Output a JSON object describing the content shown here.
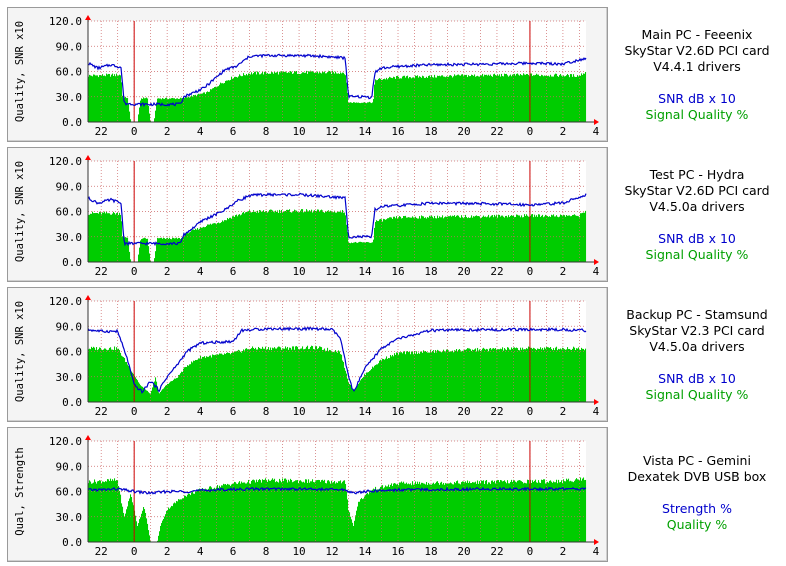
{
  "colors": {
    "snr_line": "#0000cc",
    "quality_fill": "#00cc00",
    "midnight": "#cc0000",
    "grid": "#cc6666",
    "axis_arrow": "#ff0000"
  },
  "chart_data": [
    {
      "type": "area",
      "ylabel": "Quality, SNR x10",
      "ylim": [
        0,
        120
      ],
      "yticks": [
        "120.0",
        "90.0",
        "60.0",
        "30.0",
        "0.0"
      ],
      "xticks": [
        "22",
        "0",
        "2",
        "4",
        "6",
        "8",
        "10",
        "12",
        "14",
        "16",
        "18",
        "20",
        "22",
        "0",
        "2",
        "4",
        "6",
        "8",
        "10",
        "12",
        "14"
      ],
      "hours_range": [
        21.2,
        51.4
      ],
      "midnights": [
        24,
        48
      ],
      "series": [
        {
          "name": "SNR dB x 10",
          "kind": "line",
          "points": [
            [
              21.2,
              70
            ],
            [
              21.8,
              64
            ],
            [
              22.6,
              68
            ],
            [
              23.2,
              65
            ],
            [
              23.4,
              22
            ],
            [
              24.3,
              21
            ],
            [
              26,
              21
            ],
            [
              26.8,
              21
            ],
            [
              27.0,
              30
            ],
            [
              28.2,
              40
            ],
            [
              28.8,
              50
            ],
            [
              29.5,
              62
            ],
            [
              30.2,
              66
            ],
            [
              31,
              78
            ],
            [
              32,
              79
            ],
            [
              34,
              79
            ],
            [
              35.5,
              78
            ],
            [
              36.8,
              76
            ],
            [
              37,
              30
            ],
            [
              38,
              30
            ],
            [
              38.4,
              29
            ],
            [
              38.6,
              59
            ],
            [
              39,
              64
            ],
            [
              40,
              66
            ],
            [
              42,
              68
            ],
            [
              46,
              69
            ],
            [
              48,
              70
            ],
            [
              50,
              69
            ],
            [
              51.4,
              76
            ]
          ]
        },
        {
          "name": "Signal Quality %",
          "kind": "area",
          "points": [
            [
              21.2,
              57
            ],
            [
              23.2,
              58
            ],
            [
              23.3,
              30
            ],
            [
              23.6,
              30
            ],
            [
              23.8,
              0
            ],
            [
              24.2,
              0
            ],
            [
              24.4,
              29
            ],
            [
              24.8,
              30
            ],
            [
              25.0,
              0
            ],
            [
              25.2,
              0
            ],
            [
              25.4,
              29
            ],
            [
              26.9,
              29
            ],
            [
              27.1,
              30
            ],
            [
              28.4,
              36
            ],
            [
              29.3,
              48
            ],
            [
              30,
              55
            ],
            [
              31,
              60
            ],
            [
              34,
              61
            ],
            [
              36.8,
              61
            ],
            [
              37.0,
              24
            ],
            [
              38.5,
              24
            ],
            [
              38.6,
              52
            ],
            [
              40,
              55
            ],
            [
              44,
              57
            ],
            [
              48,
              58
            ],
            [
              51,
              57
            ],
            [
              51.4,
              62
            ]
          ]
        }
      ],
      "legend": {
        "lines": [
          "Main PC - Feeenix",
          "SkyStar V2.6D PCI card",
          "V4.4.1 drivers"
        ],
        "blue": "SNR dB x 10",
        "green": "Signal Quality %"
      }
    },
    {
      "type": "area",
      "ylabel": "Quality, SNR x10",
      "ylim": [
        0,
        120
      ],
      "yticks": [
        "120.0",
        "90.0",
        "60.0",
        "30.0",
        "0.0"
      ],
      "xticks": [
        "22",
        "0",
        "2",
        "4",
        "6",
        "8",
        "10",
        "12",
        "14",
        "16",
        "18",
        "20",
        "22",
        "0",
        "2",
        "4",
        "6",
        "8",
        "10",
        "12",
        "14"
      ],
      "hours_range": [
        21.2,
        51.4
      ],
      "midnights": [
        24,
        48
      ],
      "series": [
        {
          "name": "SNR dB x 10",
          "kind": "line",
          "points": [
            [
              21.2,
              76
            ],
            [
              21.8,
              70
            ],
            [
              22.6,
              74
            ],
            [
              23.2,
              70
            ],
            [
              23.4,
              22
            ],
            [
              24.3,
              22
            ],
            [
              26,
              22
            ],
            [
              26.8,
              22
            ],
            [
              27.0,
              32
            ],
            [
              28.2,
              50
            ],
            [
              28.8,
              55
            ],
            [
              29.5,
              62
            ],
            [
              30.2,
              72
            ],
            [
              31,
              79
            ],
            [
              32,
              80
            ],
            [
              34,
              80
            ],
            [
              35.5,
              78
            ],
            [
              36.8,
              76
            ],
            [
              37,
              30
            ],
            [
              38,
              30
            ],
            [
              38.4,
              29
            ],
            [
              38.6,
              62
            ],
            [
              39,
              66
            ],
            [
              40,
              67
            ],
            [
              42,
              70
            ],
            [
              46,
              69
            ],
            [
              48,
              68
            ],
            [
              50,
              70
            ],
            [
              51.4,
              80
            ]
          ]
        },
        {
          "name": "Signal Quality %",
          "kind": "area",
          "points": [
            [
              21.2,
              60
            ],
            [
              23.2,
              60
            ],
            [
              23.3,
              30
            ],
            [
              23.6,
              30
            ],
            [
              23.8,
              0
            ],
            [
              24.2,
              0
            ],
            [
              24.4,
              29
            ],
            [
              24.8,
              29
            ],
            [
              25.0,
              0
            ],
            [
              25.2,
              0
            ],
            [
              25.4,
              29
            ],
            [
              26.9,
              29
            ],
            [
              27.1,
              35
            ],
            [
              28.4,
              45
            ],
            [
              29.3,
              50
            ],
            [
              30,
              56
            ],
            [
              31,
              62
            ],
            [
              34,
              63
            ],
            [
              36.8,
              62
            ],
            [
              37.0,
              24
            ],
            [
              38.5,
              24
            ],
            [
              38.6,
              50
            ],
            [
              40,
              55
            ],
            [
              44,
              56
            ],
            [
              48,
              57
            ],
            [
              51,
              57
            ],
            [
              51.4,
              64
            ]
          ]
        }
      ],
      "legend": {
        "lines": [
          "Test PC - Hydra",
          "SkyStar V2.6D PCI card",
          "V4.5.0a drivers"
        ],
        "blue": "SNR dB x 10",
        "green": "Signal Quality %"
      }
    },
    {
      "type": "area",
      "ylabel": "Quality, SNR x10",
      "ylim": [
        0,
        120
      ],
      "yticks": [
        "120.0",
        "90.0",
        "60.0",
        "30.0",
        "0.0"
      ],
      "xticks": [
        "22",
        "0",
        "2",
        "4",
        "6",
        "8",
        "10",
        "12",
        "14",
        "16",
        "18",
        "20",
        "22",
        "0",
        "2",
        "4",
        "6",
        "8",
        "10",
        "12",
        "14"
      ],
      "hours_range": [
        21.2,
        51.4
      ],
      "midnights": [
        24,
        48
      ],
      "series": [
        {
          "name": "SNR dB x 10",
          "kind": "line",
          "points": [
            [
              21.2,
              86
            ],
            [
              22,
              84
            ],
            [
              23,
              84
            ],
            [
              23.6,
              50
            ],
            [
              24,
              20
            ],
            [
              24.5,
              12
            ],
            [
              25,
              25
            ],
            [
              25.5,
              14
            ],
            [
              26,
              30
            ],
            [
              26.6,
              44
            ],
            [
              27.2,
              60
            ],
            [
              28,
              70
            ],
            [
              29,
              71
            ],
            [
              30,
              72
            ],
            [
              30.5,
              85
            ],
            [
              32,
              87
            ],
            [
              35,
              87
            ],
            [
              36,
              86
            ],
            [
              36.5,
              76
            ],
            [
              37,
              30
            ],
            [
              37.3,
              12
            ],
            [
              38,
              40
            ],
            [
              39,
              64
            ],
            [
              40,
              75
            ],
            [
              42,
              85
            ],
            [
              46,
              86
            ],
            [
              50,
              86
            ],
            [
              51.4,
              85
            ]
          ]
        },
        {
          "name": "Signal Quality %",
          "kind": "area",
          "points": [
            [
              21.2,
              66
            ],
            [
              23,
              66
            ],
            [
              23.8,
              40
            ],
            [
              24.4,
              20
            ],
            [
              25,
              10
            ],
            [
              25.3,
              30
            ],
            [
              25.5,
              10
            ],
            [
              26,
              22
            ],
            [
              26.6,
              30
            ],
            [
              27.2,
              45
            ],
            [
              28,
              55
            ],
            [
              30,
              60
            ],
            [
              31,
              66
            ],
            [
              35,
              67
            ],
            [
              36.5,
              62
            ],
            [
              37,
              25
            ],
            [
              37.3,
              14
            ],
            [
              38,
              34
            ],
            [
              39,
              52
            ],
            [
              40,
              60
            ],
            [
              44,
              64
            ],
            [
              48,
              66
            ],
            [
              51.4,
              66
            ]
          ]
        }
      ],
      "legend": {
        "lines": [
          "Backup PC - Stamsund",
          "SkyStar V2.3 PCI card",
          "V4.5.0a drivers"
        ],
        "blue": "SNR dB x 10",
        "green": "Signal Quality %"
      }
    },
    {
      "type": "area",
      "ylabel": "Qual, Strength",
      "ylim": [
        0,
        120
      ],
      "yticks": [
        "120.0",
        "90.0",
        "60.0",
        "30.0",
        "0.0"
      ],
      "xticks": [
        "22",
        "0",
        "2",
        "4",
        "6",
        "8",
        "10",
        "12",
        "14",
        "16",
        "18",
        "20",
        "22",
        "0",
        "2",
        "4",
        "6",
        "8",
        "10",
        "12",
        "14"
      ],
      "hours_range": [
        21.2,
        51.4
      ],
      "midnights": [
        24,
        48
      ],
      "series": [
        {
          "name": "Strength %",
          "kind": "line",
          "points": [
            [
              21.2,
              62
            ],
            [
              22,
              62
            ],
            [
              23,
              63
            ],
            [
              24,
              60
            ],
            [
              25,
              58
            ],
            [
              26,
              60
            ],
            [
              27,
              60
            ],
            [
              29,
              62
            ],
            [
              31,
              63
            ],
            [
              34,
              63
            ],
            [
              36.8,
              62
            ],
            [
              37.3,
              58
            ],
            [
              38,
              60
            ],
            [
              40,
              62
            ],
            [
              46,
              63
            ],
            [
              50,
              63
            ],
            [
              51.4,
              63
            ]
          ]
        },
        {
          "name": "Quality %",
          "kind": "area",
          "points": [
            [
              21.2,
              74
            ],
            [
              23,
              76
            ],
            [
              23.4,
              30
            ],
            [
              23.8,
              60
            ],
            [
              24.2,
              20
            ],
            [
              24.6,
              45
            ],
            [
              25,
              0
            ],
            [
              25.4,
              0
            ],
            [
              25.6,
              20
            ],
            [
              26,
              40
            ],
            [
              26.6,
              50
            ],
            [
              27,
              56
            ],
            [
              28,
              64
            ],
            [
              30,
              72
            ],
            [
              32,
              76
            ],
            [
              36.8,
              74
            ],
            [
              37,
              40
            ],
            [
              37.3,
              20
            ],
            [
              37.6,
              50
            ],
            [
              38.5,
              65
            ],
            [
              40,
              72
            ],
            [
              46,
              74
            ],
            [
              50,
              75
            ],
            [
              51.4,
              78
            ]
          ]
        }
      ],
      "legend": {
        "lines": [
          "Vista PC - Gemini",
          "Dexatek DVB USB box"
        ],
        "blue": "Strength %",
        "green": "Quality %"
      }
    }
  ]
}
